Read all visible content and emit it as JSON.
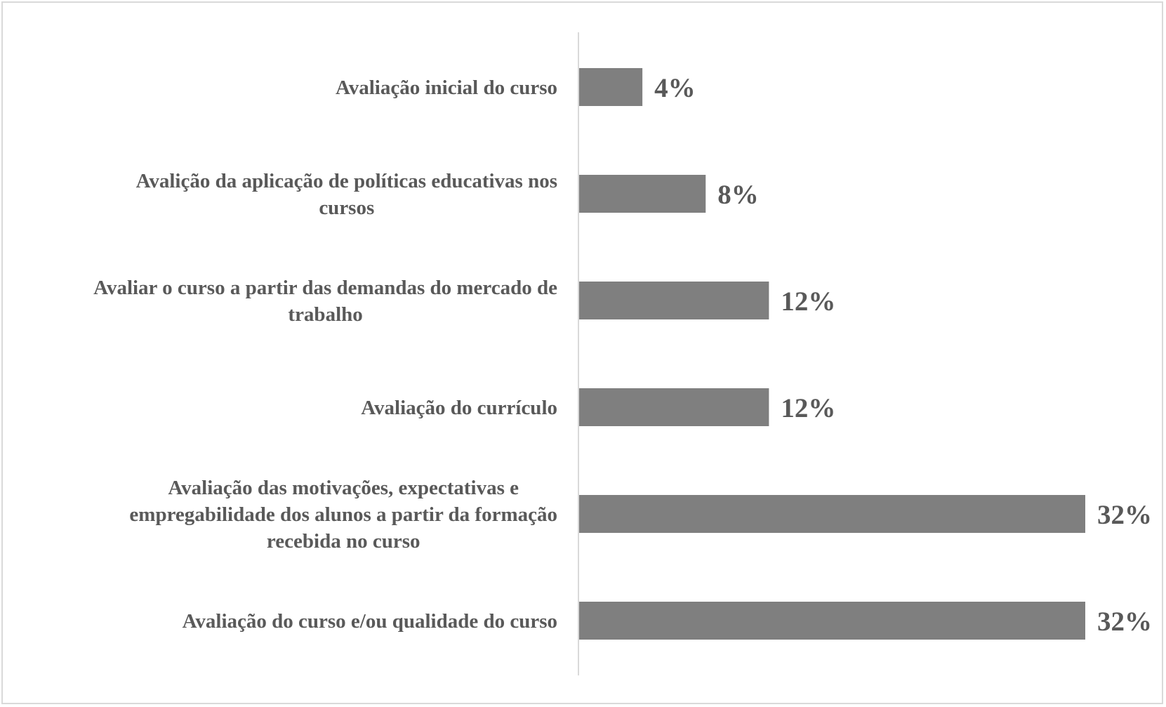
{
  "chart_data": {
    "type": "bar",
    "orientation": "horizontal",
    "categories": [
      "Avaliação inicial do curso",
      "Avalição da aplicação de políticas educativas nos cursos",
      "Avaliar o curso a partir das demandas do mercado de trabalho",
      "Avaliação do currículo",
      "Avaliação das motivações, expectativas e empregabilidade dos alunos a partir da formação recebida no curso",
      "Avaliação do curso e/ou qualidade do curso"
    ],
    "values": [
      4,
      8,
      12,
      12,
      32,
      32
    ],
    "labels": [
      "4%",
      "8%",
      "12%",
      "12%",
      "32%",
      "32%"
    ],
    "label_lines": [
      [
        "Avaliação inicial do curso"
      ],
      [
        "Avalição da aplicação de políticas educativas nos",
        "cursos"
      ],
      [
        "Avaliar o curso a partir das demandas do mercado de",
        "trabalho"
      ],
      [
        "Avaliação do currículo"
      ],
      [
        "Avaliação das motivações, expectativas e",
        "empregabilidade dos alunos a partir da formação",
        "recebida no curso"
      ],
      [
        "Avaliação do curso e/ou qualidade do curso"
      ]
    ],
    "unit": "%",
    "xlim": [
      0,
      32
    ],
    "grid": false,
    "legend": "none",
    "colors": {
      "bar": "#7f7f7f",
      "text": "#595959",
      "axis": "#d9d9d9",
      "border": "#d9d9d9"
    }
  }
}
